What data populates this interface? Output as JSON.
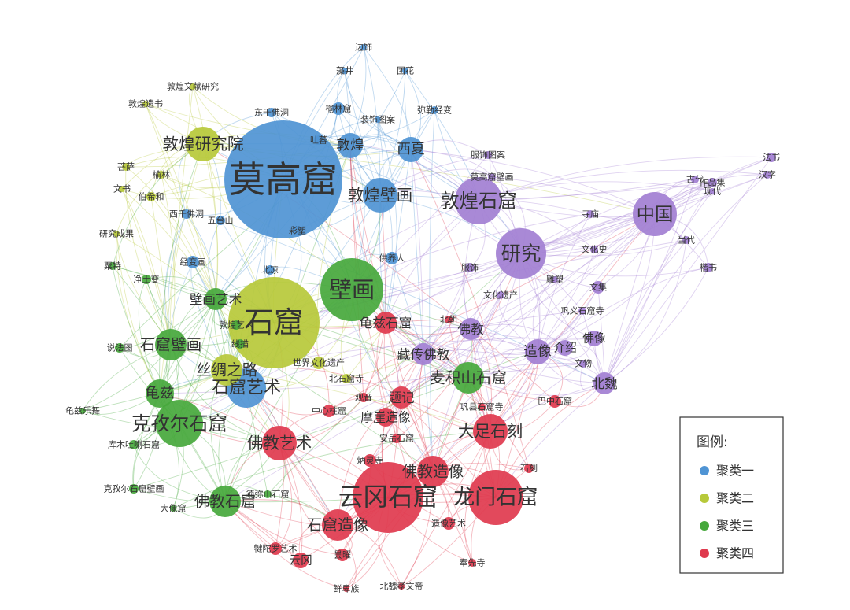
{
  "cluster_colors": [
    "#4f94d4",
    "#b7c93a",
    "#46a83c",
    "#df3a4e",
    "#a27fd3"
  ],
  "legend": {
    "title": "图例:",
    "items": [
      {
        "label": "聚类一",
        "cluster": 0
      },
      {
        "label": "聚类二",
        "cluster": 1
      },
      {
        "label": "聚类三",
        "cluster": 2
      },
      {
        "label": "聚类四",
        "cluster": 3
      }
    ]
  },
  "nodes": [
    {
      "label": "莫高窟",
      "cluster": 0
    },
    {
      "label": "敦煌壁画",
      "cluster": 0
    },
    {
      "label": "敦煌",
      "cluster": 0
    },
    {
      "label": "西夏",
      "cluster": 0
    },
    {
      "label": "榆林窟",
      "cluster": 0
    },
    {
      "label": "东千佛洞",
      "cluster": 0
    },
    {
      "label": "石窟艺术",
      "cluster": 0
    },
    {
      "label": "经变画",
      "cluster": 0
    },
    {
      "label": "吐蕃",
      "cluster": 0
    },
    {
      "label": "供养人",
      "cluster": 0
    },
    {
      "label": "边饰",
      "cluster": 0
    },
    {
      "label": "藻井",
      "cluster": 0
    },
    {
      "label": "团花",
      "cluster": 0
    },
    {
      "label": "装饰图案",
      "cluster": 0
    },
    {
      "label": "弥勒经变",
      "cluster": 0
    },
    {
      "label": "五台山",
      "cluster": 0
    },
    {
      "label": "彩塑",
      "cluster": 0
    },
    {
      "label": "北凉",
      "cluster": 0
    },
    {
      "label": "西千佛洞",
      "cluster": 0
    },
    {
      "label": "石窟",
      "cluster": 1
    },
    {
      "label": "敦煌研究院",
      "cluster": 1
    },
    {
      "label": "丝绸之路",
      "cluster": 1
    },
    {
      "label": "世界文化遗产",
      "cluster": 1
    },
    {
      "label": "敦煌文献研究",
      "cluster": 1
    },
    {
      "label": "敦煌遗书",
      "cluster": 1
    },
    {
      "label": "菩萨",
      "cluster": 1
    },
    {
      "label": "榆林",
      "cluster": 1
    },
    {
      "label": "文书",
      "cluster": 1
    },
    {
      "label": "伯希和",
      "cluster": 1
    },
    {
      "label": "研究成果",
      "cluster": 1
    },
    {
      "label": "北石窟寺",
      "cluster": 1
    },
    {
      "label": "壁画",
      "cluster": 2
    },
    {
      "label": "石窟壁画",
      "cluster": 2
    },
    {
      "label": "龟兹",
      "cluster": 2
    },
    {
      "label": "克孜尔石窟",
      "cluster": 2
    },
    {
      "label": "佛教石窟",
      "cluster": 2
    },
    {
      "label": "壁画艺术",
      "cluster": 2
    },
    {
      "label": "麦积山石窟",
      "cluster": 2
    },
    {
      "label": "龟兹乐舞",
      "cluster": 2
    },
    {
      "label": "库木吐喇石窟",
      "cluster": 2
    },
    {
      "label": "粟特",
      "cluster": 2
    },
    {
      "label": "净土变",
      "cluster": 2
    },
    {
      "label": "说法图",
      "cluster": 2
    },
    {
      "label": "克孜尔石窟壁画",
      "cluster": 2
    },
    {
      "label": "大像窟",
      "cluster": 2
    },
    {
      "label": "线描",
      "cluster": 2
    },
    {
      "label": "须弥山石窟",
      "cluster": 2
    },
    {
      "label": "敦煌艺术",
      "cluster": 2
    },
    {
      "label": "云冈石窟",
      "cluster": 3
    },
    {
      "label": "龙门石窟",
      "cluster": 3
    },
    {
      "label": "大足石刻",
      "cluster": 3
    },
    {
      "label": "佛教艺术",
      "cluster": 3
    },
    {
      "label": "佛教造像",
      "cluster": 3
    },
    {
      "label": "石窟造像",
      "cluster": 3
    },
    {
      "label": "龟兹石窟",
      "cluster": 3
    },
    {
      "label": "题记",
      "cluster": 3
    },
    {
      "label": "摩崖造像",
      "cluster": 3
    },
    {
      "label": "中心柱窟",
      "cluster": 3
    },
    {
      "label": "造像艺术",
      "cluster": 3
    },
    {
      "label": "犍陀罗艺术",
      "cluster": 3
    },
    {
      "label": "云冈",
      "cluster": 3
    },
    {
      "label": "昙曜",
      "cluster": 3
    },
    {
      "label": "鲜卑族",
      "cluster": 3
    },
    {
      "label": "北魏孝文帝",
      "cluster": 3
    },
    {
      "label": "奉先寺",
      "cluster": 3
    },
    {
      "label": "巴中石窟",
      "cluster": 3
    },
    {
      "label": "巩县石窟寺",
      "cluster": 3
    },
    {
      "label": "炳灵寺",
      "cluster": 3
    },
    {
      "label": "观音",
      "cluster": 3
    },
    {
      "label": "安岳石窟",
      "cluster": 3
    },
    {
      "label": "石刻",
      "cluster": 3
    },
    {
      "label": "北朝",
      "cluster": 3
    },
    {
      "label": "研究",
      "cluster": 4
    },
    {
      "label": "中国",
      "cluster": 4
    },
    {
      "label": "敦煌石窟",
      "cluster": 4
    },
    {
      "label": "佛教",
      "cluster": 4
    },
    {
      "label": "造像",
      "cluster": 4
    },
    {
      "label": "藏传佛教",
      "cluster": 4
    },
    {
      "label": "北魏",
      "cluster": 4
    },
    {
      "label": "佛像",
      "cluster": 4
    },
    {
      "label": "介绍",
      "cluster": 4
    },
    {
      "label": "文集",
      "cluster": 4
    },
    {
      "label": "法书",
      "cluster": 4
    },
    {
      "label": "作品集",
      "cluster": 4
    },
    {
      "label": "汉字",
      "cluster": 4
    },
    {
      "label": "古代",
      "cluster": 4
    },
    {
      "label": "现代",
      "cluster": 4
    },
    {
      "label": "当代",
      "cluster": 4
    },
    {
      "label": "楷书",
      "cluster": 4
    },
    {
      "label": "文化史",
      "cluster": 4
    },
    {
      "label": "寺庙",
      "cluster": 4
    },
    {
      "label": "服饰",
      "cluster": 4
    },
    {
      "label": "服饰图案",
      "cluster": 4
    },
    {
      "label": "莫高窟壁画",
      "cluster": 4
    },
    {
      "label": "文化遗产",
      "cluster": 4
    },
    {
      "label": "巩义石窟寺",
      "cluster": 4
    },
    {
      "label": "雕塑",
      "cluster": 4
    },
    {
      "label": "文物",
      "cluster": 4
    }
  ]
}
